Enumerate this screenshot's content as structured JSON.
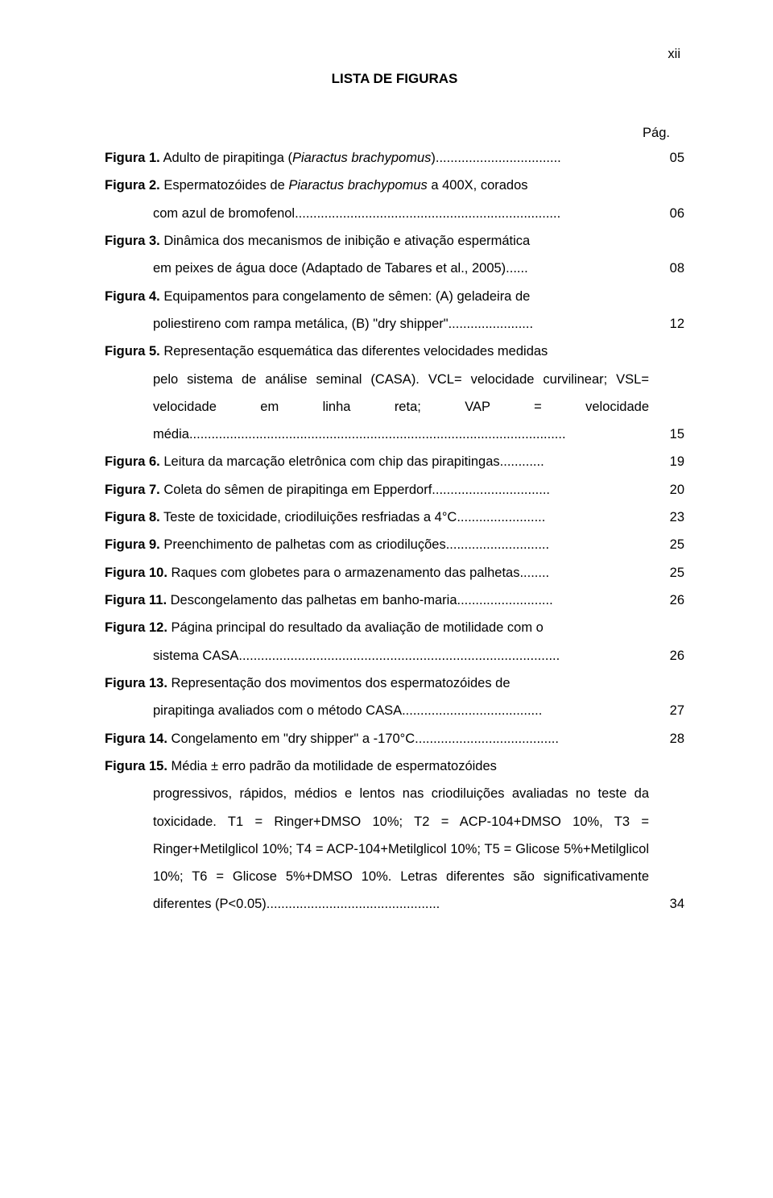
{
  "page_roman": "xii",
  "heading": "LISTA DE FIGURAS",
  "pag_label": "Pág.",
  "entries": [
    {
      "label": "Figura 1.",
      "text_before_italic": " Adulto de pirapitinga (",
      "italic": "Piaractus brachypomus",
      "text_after_italic": ")..................................",
      "page": "05"
    },
    {
      "label": "Figura 2.",
      "text_before_italic": " Espermatozóides de ",
      "italic": "Piaractus brachypomus",
      "text_after_italic": " a 400X, corados",
      "cont": "com azul de bromofenol........................................................................",
      "page": "06"
    },
    {
      "label": "Figura 3.",
      "text": " Dinâmica dos mecanismos de inibição e ativação espermática",
      "cont": "em peixes de água doce (Adaptado de Tabares et al., 2005)......",
      "page": "08"
    },
    {
      "label": "Figura 4.",
      "text": " Equipamentos para congelamento de sêmen: (A) geladeira de",
      "cont": "poliestireno com rampa metálica, (B) \"dry shipper\".......................",
      "page": "12"
    },
    {
      "label": "Figura 5.",
      "text": " Representação esquemática das diferentes velocidades medidas",
      "cont": "pelo sistema de análise seminal (CASA). VCL= velocidade curvilinear; VSL= velocidade em linha reta; VAP = velocidade média......................................................................................................",
      "page": "15"
    },
    {
      "label": "Figura 6.",
      "text": " Leitura da marcação eletrônica com chip das pirapitingas............",
      "page": "19"
    },
    {
      "label": "Figura 7.",
      "text": " Coleta do sêmen de pirapitinga em Epperdorf................................",
      "page": "20"
    },
    {
      "label": "Figura 8.",
      "text": " Teste de toxicidade, criodiluições resfriadas a 4°C........................",
      "page": "23"
    },
    {
      "label": "Figura 9.",
      "text": " Preenchimento de palhetas com as criodiluções............................",
      "page": "25"
    },
    {
      "label": "Figura 10.",
      "text": " Raques com globetes para o armazenamento das palhetas........",
      "page": "25"
    },
    {
      "label": "Figura 11.",
      "text": " Descongelamento das palhetas em banho-maria..........................",
      "page": "26"
    },
    {
      "label": "Figura 12.",
      "text": " Página principal do resultado da avaliação de motilidade com o",
      "cont": "sistema CASA.......................................................................................",
      "page": "26"
    },
    {
      "label": "Figura 13.",
      "text": " Representação dos movimentos dos espermatozóides de",
      "cont": "pirapitinga avaliados com o método CASA......................................",
      "page": "27"
    },
    {
      "label": "Figura 14.",
      "text": " Congelamento em \"dry shipper\" a -170°C.......................................",
      "page": "28"
    },
    {
      "label": "Figura 15.",
      "text": " Média ± erro padrão da motilidade de espermatozóides",
      "cont": "progressivos, rápidos, médios e lentos nas criodiluições avaliadas no teste da toxicidade. T1 = Ringer+DMSO 10%; T2 = ACP-104+DMSO 10%, T3 = Ringer+Metilglicol 10%; T4 = ACP-104+Metilglicol 10%; T5 = Glicose 5%+Metilglicol 10%; T6 = Glicose 5%+DMSO 10%. Letras diferentes são significativamente diferentes (P<0.05)...............................................",
      "page": "34"
    }
  ]
}
